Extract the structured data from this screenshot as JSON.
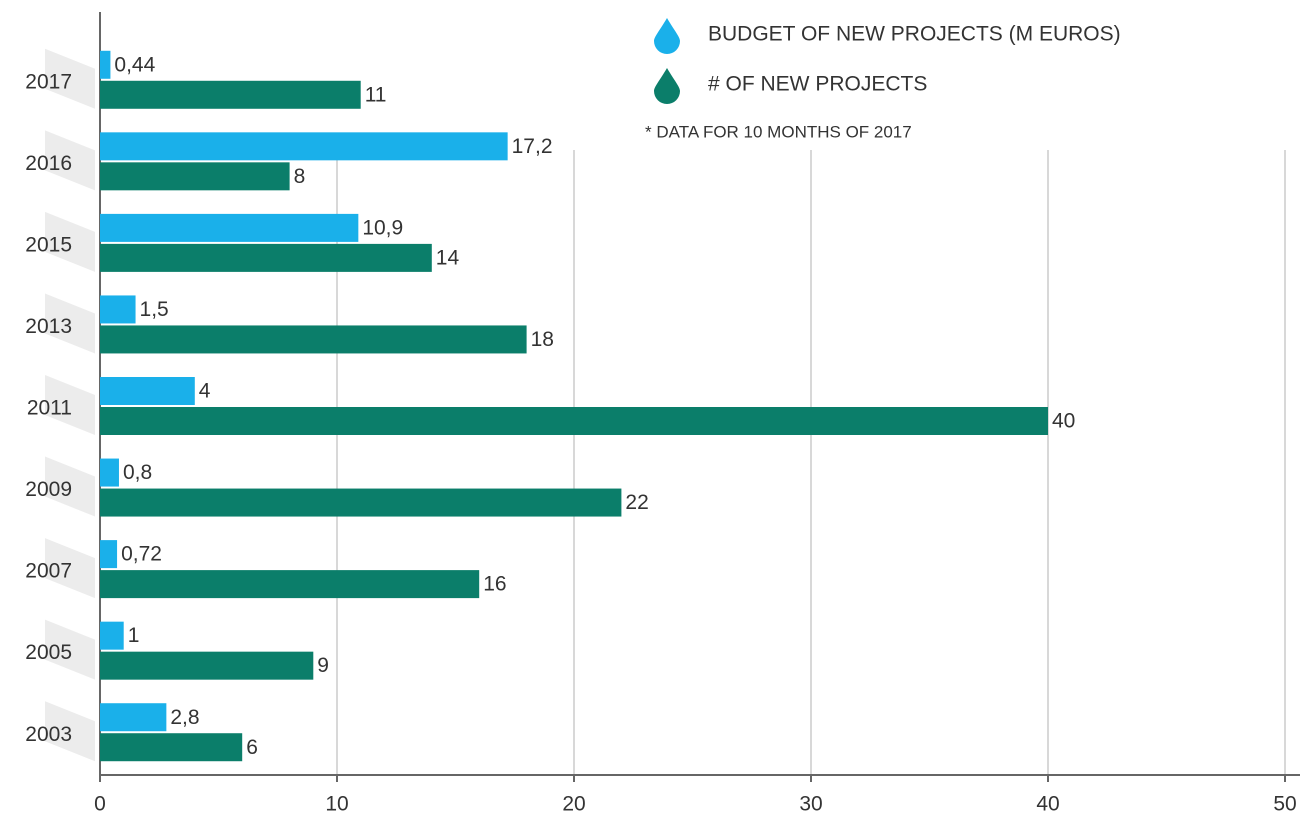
{
  "chart_data": {
    "type": "hbar",
    "categories": [
      "2017",
      "2016",
      "2015",
      "2013",
      "2011",
      "2009",
      "2007",
      "2005",
      "2003"
    ],
    "series": [
      {
        "name": "BUDGET OF NEW PROJECTS (M EUROS)",
        "color": "#1ab0ea",
        "values": [
          0.44,
          17.2,
          10.9,
          1.5,
          4,
          0.8,
          0.72,
          1,
          2.8
        ],
        "value_labels": [
          "0,44",
          "17,2",
          "10,9",
          "1,5",
          "4",
          "0,8",
          "0,72",
          "1",
          "2,8"
        ]
      },
      {
        "name": "# OF NEW PROJECTS",
        "color": "#0b7e6a",
        "values": [
          11,
          8,
          14,
          18,
          40,
          22,
          16,
          9,
          6
        ]
      }
    ],
    "annotation": "* DATA FOR 10 MONTHS OF 2017",
    "xlim": [
      0,
      50
    ],
    "xticks": [
      0,
      10,
      20,
      30,
      40,
      50
    ],
    "grid": true,
    "legend": "upper right"
  }
}
